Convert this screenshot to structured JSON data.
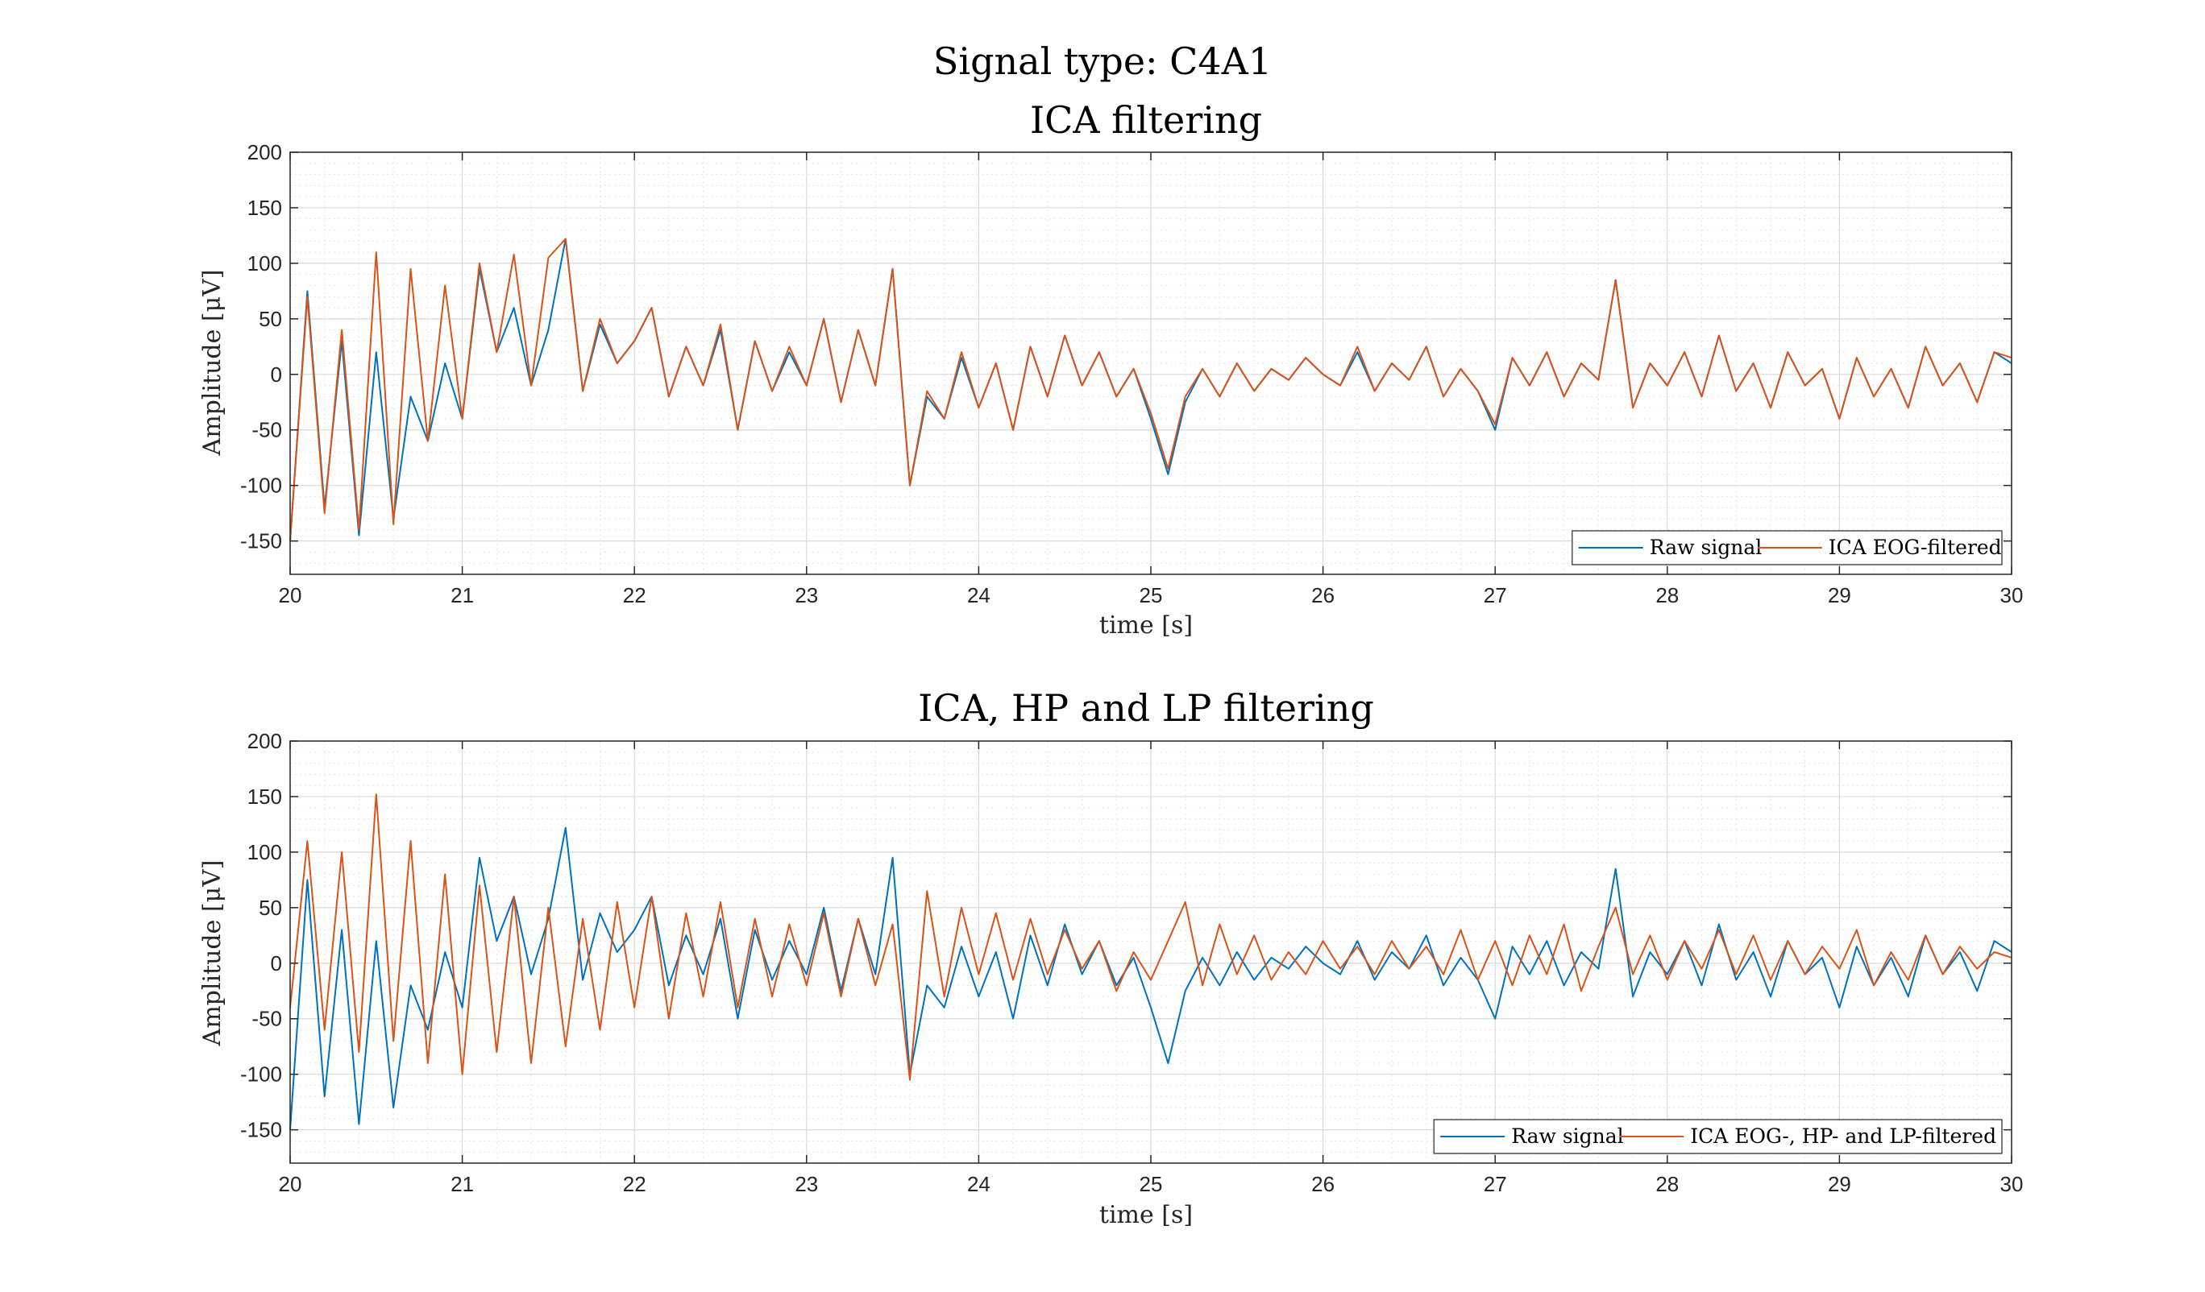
{
  "figure": {
    "suptitle": "Signal type: C4A1"
  },
  "chart_data": [
    {
      "type": "line",
      "title": "ICA filtering",
      "xlabel": "time [s]",
      "ylabel": "Amplitude [μV]",
      "xlim": [
        20,
        30
      ],
      "ylim": [
        -180,
        200
      ],
      "xticks": [
        20,
        21,
        22,
        23,
        24,
        25,
        26,
        27,
        28,
        29,
        30
      ],
      "yticks": [
        -150,
        -100,
        -50,
        0,
        50,
        100,
        150,
        200
      ],
      "grid": true,
      "minor_grid": true,
      "legend_position": "bottom-right",
      "series": [
        {
          "name": "Raw signal",
          "color": "#0072BD",
          "x": [
            20.0,
            20.1,
            20.2,
            20.3,
            20.4,
            20.5,
            20.6,
            20.7,
            20.8,
            20.9,
            21.0,
            21.1,
            21.2,
            21.3,
            21.4,
            21.5,
            21.6,
            21.7,
            21.8,
            21.9,
            22.0,
            22.1,
            22.2,
            22.3,
            22.4,
            22.5,
            22.6,
            22.7,
            22.8,
            22.9,
            23.0,
            23.1,
            23.2,
            23.3,
            23.4,
            23.5,
            23.6,
            23.7,
            23.8,
            23.9,
            24.0,
            24.1,
            24.2,
            24.3,
            24.4,
            24.5,
            24.6,
            24.7,
            24.8,
            24.9,
            25.0,
            25.1,
            25.2,
            25.3,
            25.4,
            25.5,
            25.6,
            25.7,
            25.8,
            25.9,
            26.0,
            26.1,
            26.2,
            26.3,
            26.4,
            26.5,
            26.6,
            26.7,
            26.8,
            26.9,
            27.0,
            27.1,
            27.2,
            27.3,
            27.4,
            27.5,
            27.6,
            27.7,
            27.8,
            27.9,
            28.0,
            28.1,
            28.2,
            28.3,
            28.4,
            28.5,
            28.6,
            28.7,
            28.8,
            28.9,
            29.0,
            29.1,
            29.2,
            29.3,
            29.4,
            29.5,
            29.6,
            29.7,
            29.8,
            29.9,
            30.0
          ],
          "y": [
            -150,
            75,
            -120,
            30,
            -145,
            20,
            -130,
            -20,
            -60,
            10,
            -40,
            95,
            20,
            60,
            -10,
            40,
            122,
            -15,
            45,
            10,
            30,
            60,
            -20,
            25,
            -10,
            40,
            -50,
            30,
            -15,
            20,
            -10,
            50,
            -25,
            40,
            -10,
            95,
            -100,
            -20,
            -40,
            15,
            -30,
            10,
            -50,
            25,
            -20,
            35,
            -10,
            20,
            -20,
            5,
            -40,
            -90,
            -25,
            5,
            -20,
            10,
            -15,
            5,
            -5,
            15,
            0,
            -10,
            20,
            -15,
            10,
            -5,
            25,
            -20,
            5,
            -15,
            -50,
            15,
            -10,
            20,
            -20,
            10,
            -5,
            85,
            -30,
            10,
            -10,
            20,
            -20,
            35,
            -15,
            10,
            -30,
            20,
            -10,
            5,
            -40,
            15,
            -20,
            5,
            -30,
            25,
            -10,
            10,
            -25,
            20,
            10
          ]
        },
        {
          "name": "ICA EOG-filtered",
          "color": "#D95319",
          "x": [
            20.0,
            20.1,
            20.2,
            20.3,
            20.4,
            20.5,
            20.6,
            20.7,
            20.8,
            20.9,
            21.0,
            21.1,
            21.2,
            21.3,
            21.4,
            21.5,
            21.6,
            21.7,
            21.8,
            21.9,
            22.0,
            22.1,
            22.2,
            22.3,
            22.4,
            22.5,
            22.6,
            22.7,
            22.8,
            22.9,
            23.0,
            23.1,
            23.2,
            23.3,
            23.4,
            23.5,
            23.6,
            23.7,
            23.8,
            23.9,
            24.0,
            24.1,
            24.2,
            24.3,
            24.4,
            24.5,
            24.6,
            24.7,
            24.8,
            24.9,
            25.0,
            25.1,
            25.2,
            25.3,
            25.4,
            25.5,
            25.6,
            25.7,
            25.8,
            25.9,
            26.0,
            26.1,
            26.2,
            26.3,
            26.4,
            26.5,
            26.6,
            26.7,
            26.8,
            26.9,
            27.0,
            27.1,
            27.2,
            27.3,
            27.4,
            27.5,
            27.6,
            27.7,
            27.8,
            27.9,
            28.0,
            28.1,
            28.2,
            28.3,
            28.4,
            28.5,
            28.6,
            28.7,
            28.8,
            28.9,
            29.0,
            29.1,
            29.2,
            29.3,
            29.4,
            29.5,
            29.6,
            29.7,
            29.8,
            29.9,
            30.0
          ],
          "y": [
            -150,
            70,
            -125,
            40,
            -140,
            110,
            -135,
            95,
            -60,
            80,
            -40,
            100,
            20,
            108,
            -10,
            105,
            122,
            -15,
            50,
            10,
            30,
            60,
            -20,
            25,
            -10,
            45,
            -50,
            30,
            -15,
            25,
            -10,
            50,
            -25,
            40,
            -10,
            95,
            -100,
            -15,
            -40,
            20,
            -30,
            10,
            -50,
            25,
            -20,
            35,
            -10,
            20,
            -20,
            5,
            -35,
            -85,
            -20,
            5,
            -20,
            10,
            -15,
            5,
            -5,
            15,
            0,
            -10,
            25,
            -15,
            10,
            -5,
            25,
            -20,
            5,
            -15,
            -45,
            15,
            -10,
            20,
            -20,
            10,
            -5,
            85,
            -30,
            10,
            -10,
            20,
            -20,
            35,
            -15,
            10,
            -30,
            20,
            -10,
            5,
            -40,
            15,
            -20,
            5,
            -30,
            25,
            -10,
            10,
            -25,
            20,
            15
          ]
        }
      ]
    },
    {
      "type": "line",
      "title": "ICA, HP and LP filtering",
      "xlabel": "time [s]",
      "ylabel": "Amplitude [μV]",
      "xlim": [
        20,
        30
      ],
      "ylim": [
        -180,
        200
      ],
      "xticks": [
        20,
        21,
        22,
        23,
        24,
        25,
        26,
        27,
        28,
        29,
        30
      ],
      "yticks": [
        -150,
        -100,
        -50,
        0,
        50,
        100,
        150,
        200
      ],
      "grid": true,
      "minor_grid": true,
      "legend_position": "bottom-right",
      "series": [
        {
          "name": "Raw signal",
          "color": "#0072BD",
          "x": [
            20.0,
            20.1,
            20.2,
            20.3,
            20.4,
            20.5,
            20.6,
            20.7,
            20.8,
            20.9,
            21.0,
            21.1,
            21.2,
            21.3,
            21.4,
            21.5,
            21.6,
            21.7,
            21.8,
            21.9,
            22.0,
            22.1,
            22.2,
            22.3,
            22.4,
            22.5,
            22.6,
            22.7,
            22.8,
            22.9,
            23.0,
            23.1,
            23.2,
            23.3,
            23.4,
            23.5,
            23.6,
            23.7,
            23.8,
            23.9,
            24.0,
            24.1,
            24.2,
            24.3,
            24.4,
            24.5,
            24.6,
            24.7,
            24.8,
            24.9,
            25.0,
            25.1,
            25.2,
            25.3,
            25.4,
            25.5,
            25.6,
            25.7,
            25.8,
            25.9,
            26.0,
            26.1,
            26.2,
            26.3,
            26.4,
            26.5,
            26.6,
            26.7,
            26.8,
            26.9,
            27.0,
            27.1,
            27.2,
            27.3,
            27.4,
            27.5,
            27.6,
            27.7,
            27.8,
            27.9,
            28.0,
            28.1,
            28.2,
            28.3,
            28.4,
            28.5,
            28.6,
            28.7,
            28.8,
            28.9,
            29.0,
            29.1,
            29.2,
            29.3,
            29.4,
            29.5,
            29.6,
            29.7,
            29.8,
            29.9,
            30.0
          ],
          "y": [
            -150,
            75,
            -120,
            30,
            -145,
            20,
            -130,
            -20,
            -60,
            10,
            -40,
            95,
            20,
            60,
            -10,
            40,
            122,
            -15,
            45,
            10,
            30,
            60,
            -20,
            25,
            -10,
            40,
            -50,
            30,
            -15,
            20,
            -10,
            50,
            -25,
            40,
            -10,
            95,
            -100,
            -20,
            -40,
            15,
            -30,
            10,
            -50,
            25,
            -20,
            35,
            -10,
            20,
            -20,
            5,
            -40,
            -90,
            -25,
            5,
            -20,
            10,
            -15,
            5,
            -5,
            15,
            0,
            -10,
            20,
            -15,
            10,
            -5,
            25,
            -20,
            5,
            -15,
            -50,
            15,
            -10,
            20,
            -20,
            10,
            -5,
            85,
            -30,
            10,
            -10,
            20,
            -20,
            35,
            -15,
            10,
            -30,
            20,
            -10,
            5,
            -40,
            15,
            -20,
            5,
            -30,
            25,
            -10,
            10,
            -25,
            20,
            10
          ]
        },
        {
          "name": "ICA EOG-, HP- and LP-filtered",
          "color": "#D95319",
          "x": [
            20.0,
            20.1,
            20.2,
            20.3,
            20.4,
            20.5,
            20.6,
            20.7,
            20.8,
            20.9,
            21.0,
            21.1,
            21.2,
            21.3,
            21.4,
            21.5,
            21.6,
            21.7,
            21.8,
            21.9,
            22.0,
            22.1,
            22.2,
            22.3,
            22.4,
            22.5,
            22.6,
            22.7,
            22.8,
            22.9,
            23.0,
            23.1,
            23.2,
            23.3,
            23.4,
            23.5,
            23.6,
            23.7,
            23.8,
            23.9,
            24.0,
            24.1,
            24.2,
            24.3,
            24.4,
            24.5,
            24.6,
            24.7,
            24.8,
            24.9,
            25.0,
            25.1,
            25.2,
            25.3,
            25.4,
            25.5,
            25.6,
            25.7,
            25.8,
            25.9,
            26.0,
            26.1,
            26.2,
            26.3,
            26.4,
            26.5,
            26.6,
            26.7,
            26.8,
            26.9,
            27.0,
            27.1,
            27.2,
            27.3,
            27.4,
            27.5,
            27.6,
            27.7,
            27.8,
            27.9,
            28.0,
            28.1,
            28.2,
            28.3,
            28.4,
            28.5,
            28.6,
            28.7,
            28.8,
            28.9,
            29.0,
            29.1,
            29.2,
            29.3,
            29.4,
            29.5,
            29.6,
            29.7,
            29.8,
            29.9,
            30.0
          ],
          "y": [
            -40,
            110,
            -60,
            100,
            -80,
            152,
            -70,
            110,
            -90,
            80,
            -100,
            70,
            -80,
            60,
            -90,
            50,
            -75,
            40,
            -60,
            55,
            -40,
            60,
            -50,
            45,
            -30,
            55,
            -40,
            40,
            -30,
            35,
            -20,
            45,
            -30,
            40,
            -20,
            35,
            -105,
            65,
            -30,
            50,
            -10,
            45,
            -15,
            40,
            -10,
            30,
            -5,
            20,
            -25,
            10,
            -15,
            20,
            55,
            -20,
            35,
            -10,
            25,
            -15,
            10,
            -10,
            20,
            -5,
            15,
            -10,
            20,
            -5,
            15,
            -10,
            30,
            -15,
            20,
            -20,
            25,
            -10,
            35,
            -25,
            15,
            50,
            -10,
            25,
            -15,
            20,
            -5,
            30,
            -10,
            25,
            -15,
            20,
            -10,
            15,
            -5,
            30,
            -20,
            10,
            -15,
            25,
            -10,
            15,
            -5,
            10,
            5
          ]
        }
      ]
    }
  ]
}
